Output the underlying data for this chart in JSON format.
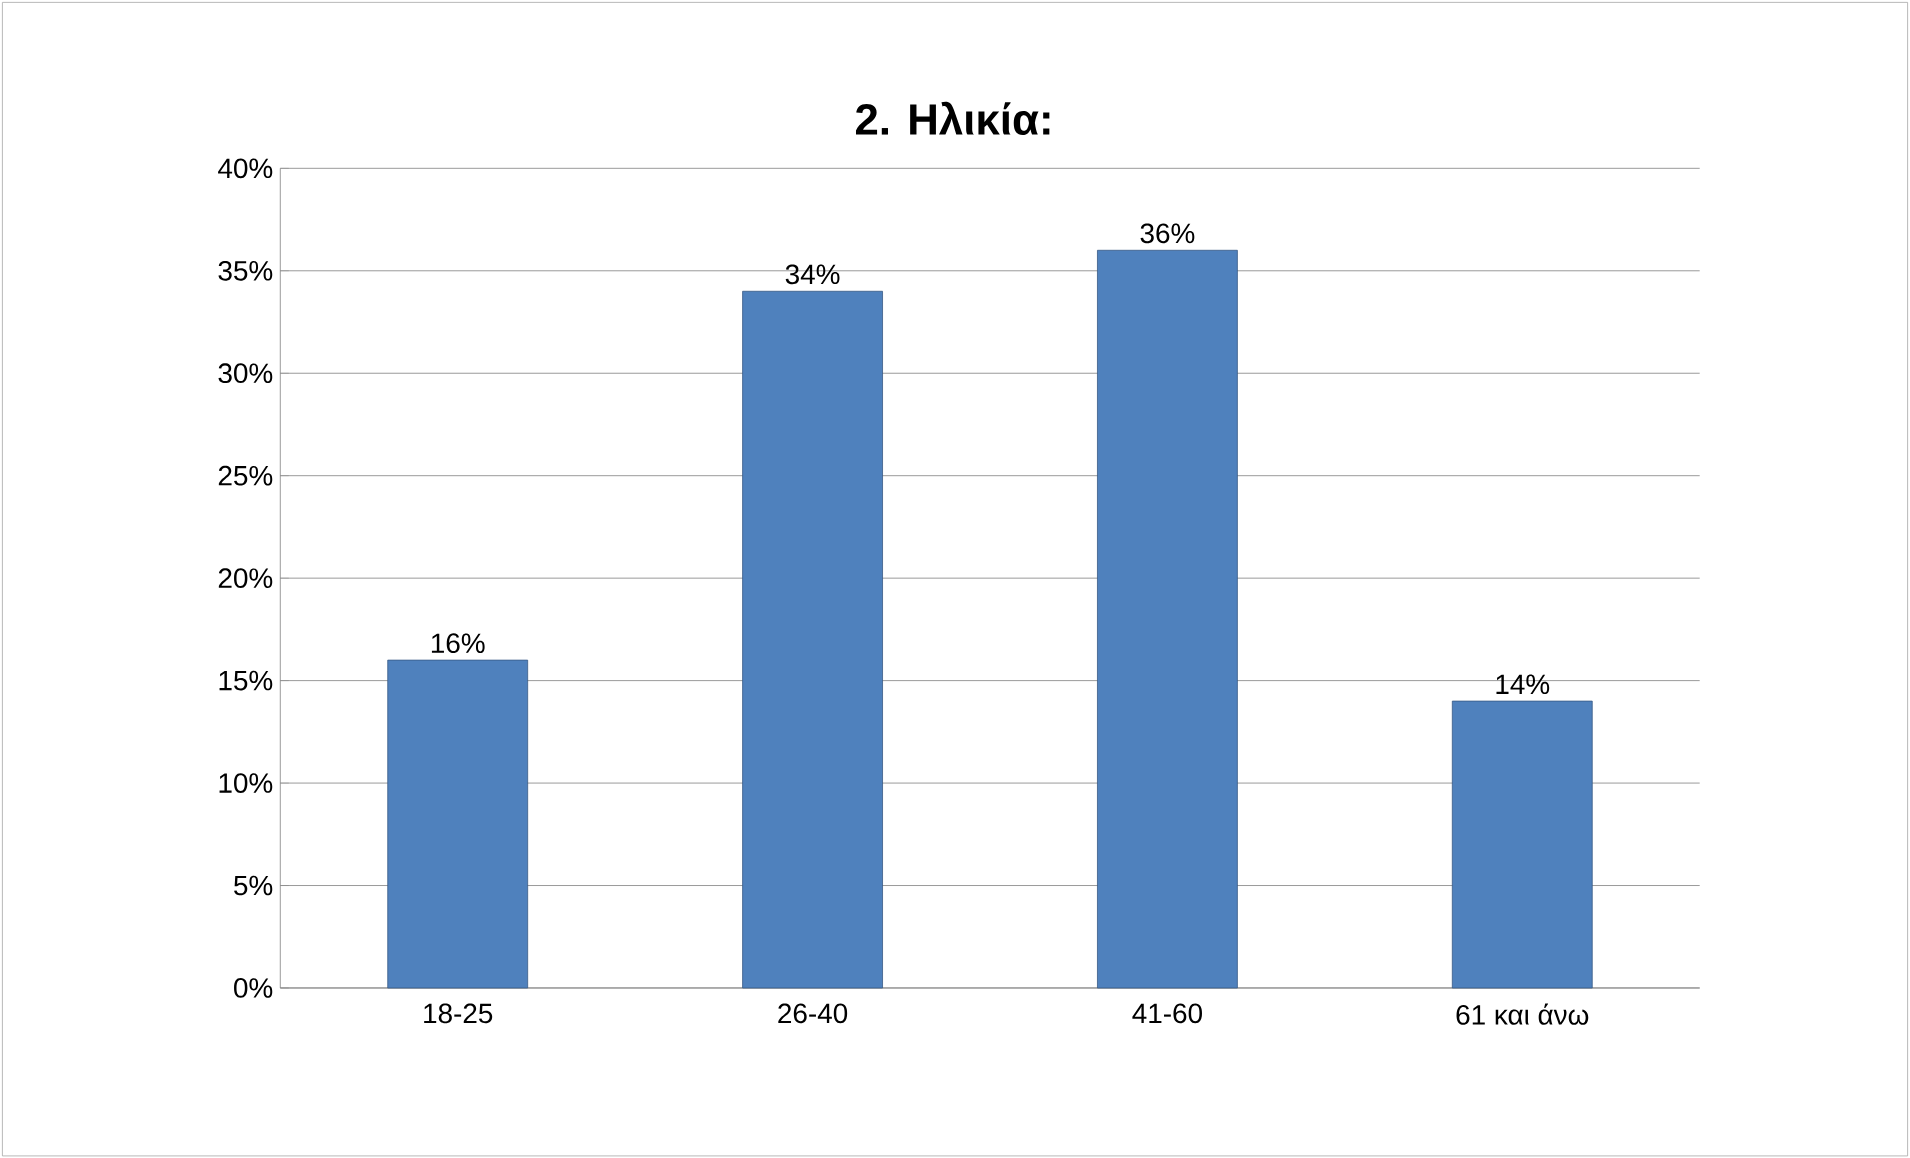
{
  "chart_data": {
    "type": "bar",
    "title": "**2.  Ηλικία:**",
    "categories": [
      "18-25",
      "26-40",
      "41-60",
      "61 και άνω"
    ],
    "values": [
      16,
      34,
      36,
      14
    ],
    "value_labels": [
      "16%",
      "34%",
      "36%",
      "14%"
    ],
    "color": "#4f81bd",
    "ylim": [
      0,
      40
    ],
    "yticks": [
      {
        "value": 0,
        "label": "0%"
      },
      {
        "value": 5,
        "label": "5%"
      },
      {
        "value": 10,
        "label": "10%"
      },
      {
        "value": 15,
        "label": "15%"
      },
      {
        "value": 20,
        "label": "20%"
      },
      {
        "value": 25,
        "label": "25%"
      },
      {
        "value": 30,
        "label": "30%"
      },
      {
        "value": 35,
        "label": "35%"
      },
      {
        "value": 40,
        "label": "40%"
      }
    ],
    "grid": "y"
  }
}
